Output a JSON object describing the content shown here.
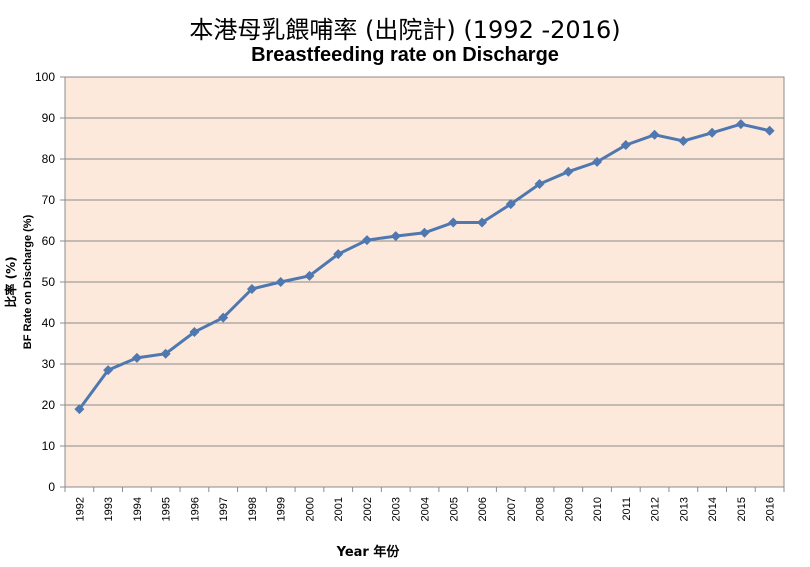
{
  "chart_data": {
    "type": "line",
    "title": "本港母乳餵哺率 (出院計) (1992 -2016)",
    "subtitle": "Breastfeeding rate on Discharge",
    "xlabel": "Year 年份",
    "ylabel_zh": "比率 (%)",
    "ylabel_en": "BF Rate on Discharge (%)",
    "ylim": [
      0,
      100
    ],
    "y_ticks": [
      "0",
      "10",
      "20",
      "30",
      "40",
      "50",
      "60",
      "70",
      "80",
      "90",
      "100"
    ],
    "grid": true,
    "legend": "none",
    "colors": {
      "plot_bg": "#fce9db",
      "line": "#4f77b0",
      "grid": "#8c8c8c"
    },
    "categories": [
      "1992",
      "1993",
      "1994",
      "1995",
      "1996",
      "1997",
      "1998",
      "1999",
      "2000",
      "2001",
      "2002",
      "2003",
      "2004",
      "2005",
      "2006",
      "2007",
      "2008",
      "2009",
      "2010",
      "2011",
      "2012",
      "2013",
      "2014",
      "2015",
      "2016"
    ],
    "series": [
      {
        "values": [
          19,
          28.5,
          31.5,
          32.5,
          37.8,
          41.3,
          48.3,
          50,
          51.5,
          56.8,
          60.2,
          61.2,
          62,
          64.5,
          64.5,
          69,
          73.9,
          76.9,
          79.3,
          83.4,
          85.9,
          84.4,
          86.4,
          88.5,
          86.9
        ]
      }
    ]
  }
}
